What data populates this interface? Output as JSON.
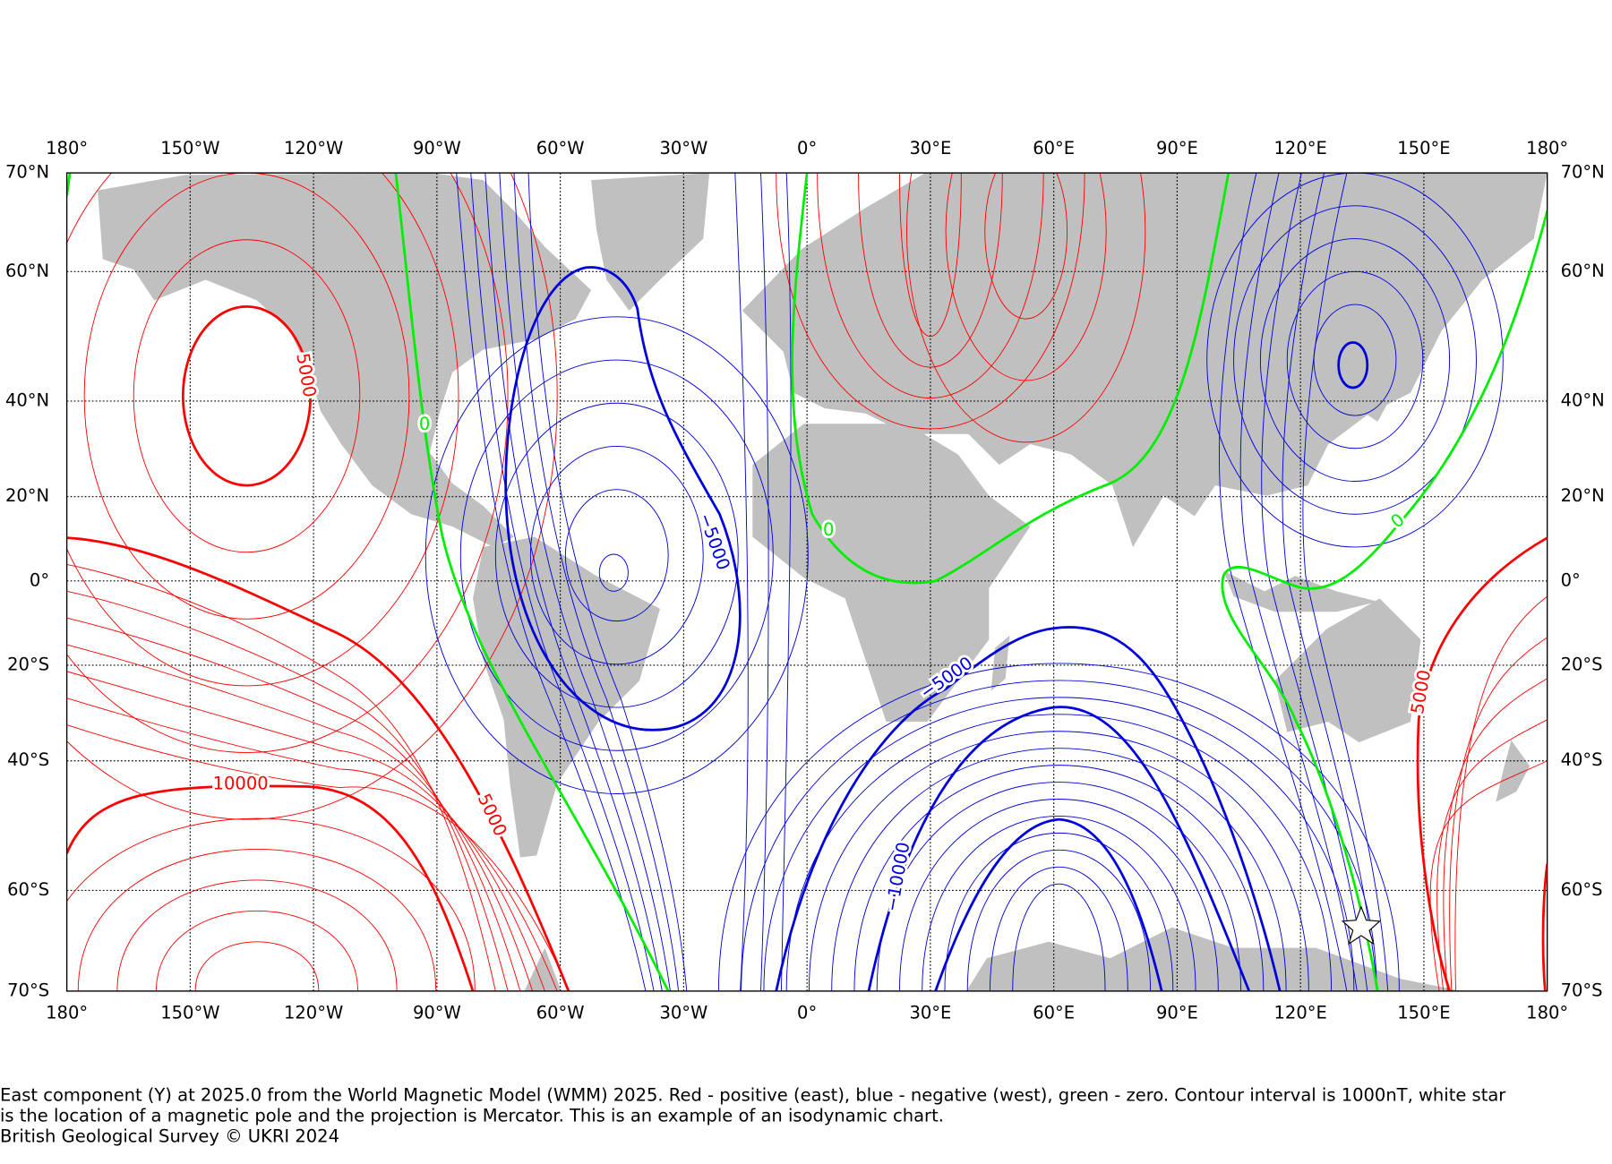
{
  "map": {
    "lon_labels": [
      "180°",
      "150°W",
      "120°W",
      "90°W",
      "60°W",
      "30°W",
      "0°",
      "30°E",
      "60°E",
      "90°E",
      "120°E",
      "150°E",
      "180°"
    ],
    "lat_labels": [
      "70°N",
      "60°N",
      "40°N",
      "20°N",
      "0°",
      "20°S",
      "40°S",
      "60°S",
      "70°S"
    ],
    "contour_labels": [
      "5000",
      "0",
      "−5000",
      "0",
      "−5000",
      "10000",
      "5000",
      "−10000",
      "0",
      "5000"
    ],
    "caption": [
      "East component (Y) at 2025.0 from the World Magnetic Model (WMM) 2025. Red - positive (east), blue - negative (west), green - zero. Contour interval is 1000nT, white star",
      "is the location of a magnetic pole and the projection is Mercator. This is an example of an isodynamic chart."
    ],
    "credit": "British Geological Survey © UKRI 2024"
  }
}
